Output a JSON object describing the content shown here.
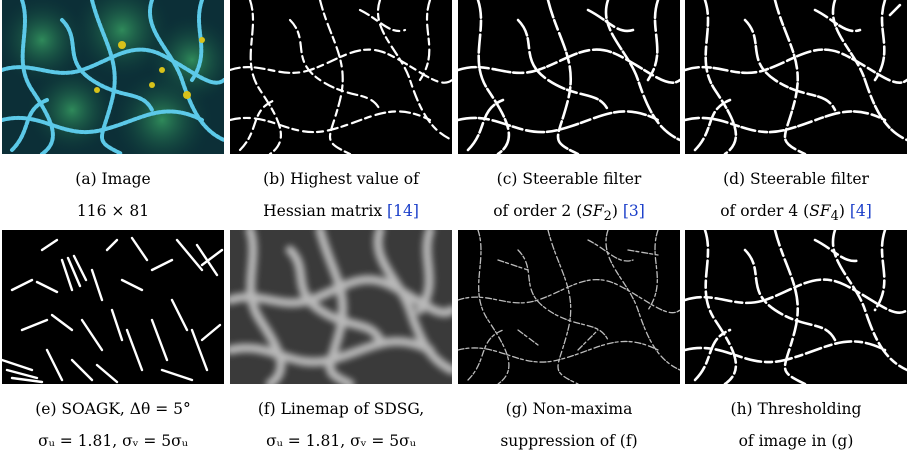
{
  "figure": {
    "panels": [
      {
        "id": "a",
        "caption": [
          "(a) Image",
          "116 × 81"
        ],
        "kind": "color-image"
      },
      {
        "id": "b",
        "caption": [
          "(b) Highest value of",
          "Hessian matrix [14]"
        ],
        "kind": "binary-lines"
      },
      {
        "id": "c",
        "caption": [
          "(c) Steerable filter",
          "of order 2 (SF₂) [3]"
        ],
        "kind": "binary-lines"
      },
      {
        "id": "d",
        "caption": [
          "(d) Steerable filter",
          "of order 4 (SF₄) [4]"
        ],
        "kind": "binary-lines"
      },
      {
        "id": "e",
        "caption": [
          "(e) SOAGK, Δθ = 5°",
          "σᵤ = 1.81, σᵥ = 5σᵤ"
        ],
        "kind": "binary-segments"
      },
      {
        "id": "f",
        "caption": [
          "(f) Linemap of SDSG,",
          "σᵤ = 1.81, σᵥ = 5σᵤ"
        ],
        "kind": "gray-linemap"
      },
      {
        "id": "g",
        "caption": [
          "(g) Non-maxima",
          "suppression of (f)"
        ],
        "kind": "nms-lines"
      },
      {
        "id": "h",
        "caption": [
          "(h) Thresholding",
          "of image in (g)"
        ],
        "kind": "binary-lines"
      }
    ],
    "references": {
      "b": "[14]",
      "c": "[3]",
      "d": "[4]"
    },
    "colors": {
      "cyan": "#3fb6d6",
      "teal": "#2a8f8a",
      "yellow": "#d8c21a",
      "white": "#ffffff",
      "black": "#000000"
    }
  }
}
